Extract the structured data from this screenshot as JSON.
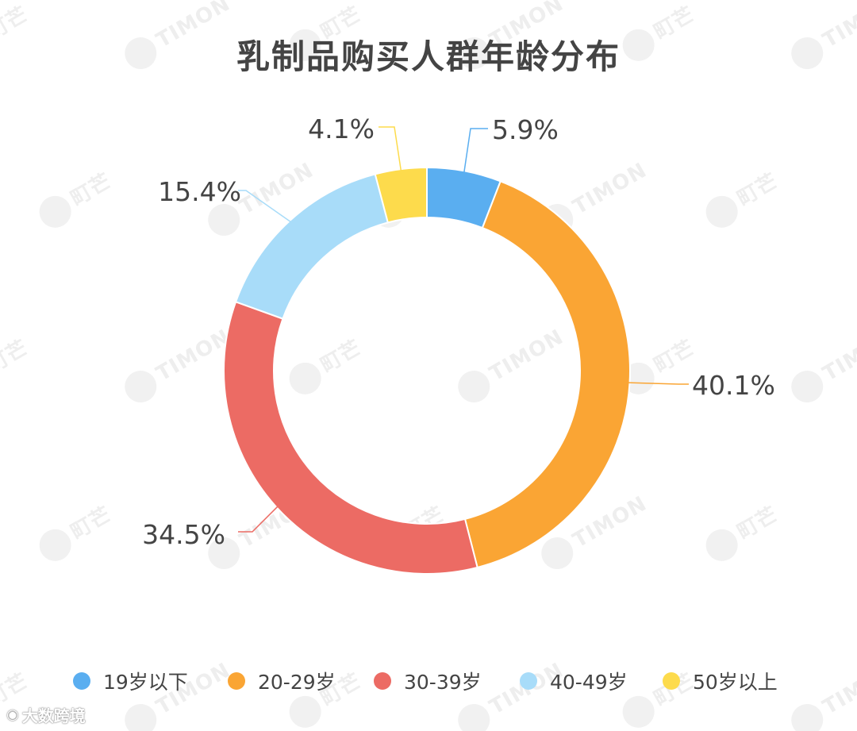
{
  "chart_data": {
    "type": "pie",
    "donut": true,
    "title": "乳制品购买人群年龄分布",
    "categories": [
      "19岁以下",
      "20-29岁",
      "30-39岁",
      "40-49岁",
      "50岁以上"
    ],
    "values": [
      5.9,
      40.1,
      34.5,
      15.4,
      4.1
    ],
    "value_labels": [
      "5.9%",
      "40.1%",
      "34.5%",
      "15.4%",
      "4.1%"
    ],
    "colors": [
      "#5aaef0",
      "#faa534",
      "#ec6b64",
      "#a8dcf9",
      "#fddb4c"
    ],
    "legend_position": "bottom"
  },
  "watermark": {
    "text_latin": "TIMON",
    "text_cn": "町芒"
  },
  "brand": {
    "icon": "weibo-icon",
    "text": "大数跨境"
  }
}
